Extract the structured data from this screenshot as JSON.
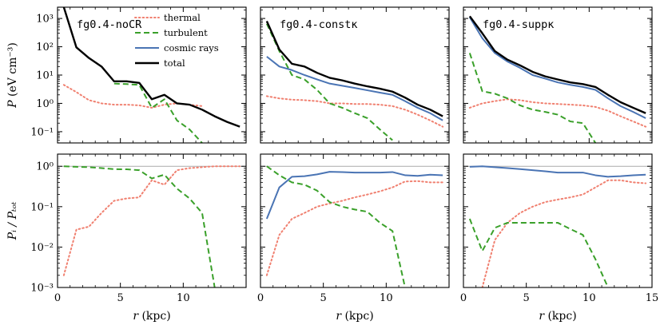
{
  "chart_data": {
    "type": "line",
    "colors": {
      "thermal": "#f08070",
      "turbulent": "#3aa02a",
      "cosmic_rays": "#4a74b4",
      "total": "#000000",
      "ref_line": "#aaaaaa"
    },
    "legend": [
      {
        "key": "thermal",
        "label": "thermal"
      },
      {
        "key": "turbulent",
        "label": "turbulent"
      },
      {
        "key": "cosmic_rays",
        "label": "cosmic rays"
      },
      {
        "key": "total",
        "label": "total"
      }
    ],
    "xlabel_var": "r",
    "xlabel_unit": " (kpc)",
    "top_ylabel_var": "P",
    "top_ylabel_unit": " (eV cm⁻³)",
    "bottom_ylabel": "Pᵢ / Pₜₒₜ",
    "xlim": [
      0,
      15
    ],
    "x_ticks": [
      0,
      5,
      10,
      15
    ],
    "x_tick_labels": [
      "0",
      "5",
      "10",
      "15"
    ],
    "top_ylim": [
      0.04,
      2500
    ],
    "top_y_ticks": [
      0.1,
      1,
      10,
      100,
      1000
    ],
    "top_y_tick_labels": [
      "10⁻¹",
      "10⁰",
      "10¹",
      "10²",
      "10³"
    ],
    "bottom_ylim": [
      0.001,
      2
    ],
    "bottom_y_ticks": [
      0.001,
      0.01,
      0.1,
      1
    ],
    "bottom_y_tick_labels": [
      "10⁻³",
      "10⁻²",
      "10⁻¹",
      "10⁰"
    ],
    "panels": [
      {
        "title": "fg0.4-noCR",
        "top": {
          "thermal": {
            "x": [
              0.5,
              1.5,
              2.5,
              3.5,
              4.5,
              5.5,
              6.5,
              7.5,
              8.5,
              9.5,
              10.5,
              11.5
            ],
            "y": [
              4.5,
              2.5,
              1.3,
              1.0,
              0.9,
              0.9,
              0.85,
              0.7,
              0.9,
              1.0,
              0.9,
              0.8
            ]
          },
          "turbulent": {
            "x": [
              4.5,
              5.5,
              6.5,
              7.5,
              8.5,
              9.5,
              10.5,
              11.5
            ],
            "y": [
              5.0,
              4.8,
              4.5,
              0.7,
              1.4,
              0.25,
              0.12,
              0.04
            ]
          },
          "total": {
            "x": [
              0.5,
              1.5,
              2.5,
              3.5,
              4.5,
              5.5,
              6.5,
              7.5,
              8.5,
              9.5,
              10.5,
              11.5,
              12.5,
              13.5,
              14.5
            ],
            "y": [
              2500,
              95,
              40,
              20,
              6.0,
              6.0,
              5.3,
              1.4,
              2.0,
              1.0,
              0.9,
              0.6,
              0.35,
              0.22,
              0.15
            ]
          }
        },
        "bottom": {
          "thermal": {
            "x": [
              0.5,
              1.5,
              2.5,
              3.5,
              4.5,
              5.5,
              6.5,
              7.5,
              8.5,
              9.5,
              10.5,
              11.5,
              12.5,
              13.5,
              14.5
            ],
            "y": [
              0.002,
              0.027,
              0.032,
              0.07,
              0.14,
              0.16,
              0.17,
              0.45,
              0.35,
              0.8,
              0.9,
              0.95,
              1.0,
              1.0,
              1.0
            ]
          },
          "turbulent": {
            "x": [
              0.5,
              1.5,
              2.5,
              3.5,
              4.5,
              5.5,
              6.5,
              7.5,
              8.5,
              9.5,
              10.5,
              11.5,
              12.5
            ],
            "y": [
              1.0,
              0.97,
              0.95,
              0.9,
              0.85,
              0.84,
              0.8,
              0.5,
              0.62,
              0.28,
              0.16,
              0.07,
              0.001
            ]
          }
        }
      },
      {
        "title": "fg0.4-constκ",
        "top": {
          "thermal": {
            "x": [
              0.5,
              1.5,
              2.5,
              3.5,
              4.5,
              5.5,
              6.5,
              7.5,
              8.5,
              9.5,
              10.5,
              11.5,
              12.5,
              13.5,
              14.5
            ],
            "y": [
              1.8,
              1.5,
              1.35,
              1.3,
              1.2,
              1.0,
              1.0,
              0.95,
              0.95,
              0.9,
              0.8,
              0.6,
              0.4,
              0.25,
              0.15
            ]
          },
          "turbulent": {
            "x": [
              0.5,
              1.5,
              2.5,
              3.5,
              4.5,
              5.5,
              6.5,
              7.5,
              8.5,
              9.5,
              10.5
            ],
            "y": [
              650,
              70,
              10,
              7,
              3,
              1.0,
              0.7,
              0.45,
              0.3,
              0.12,
              0.05
            ]
          },
          "cosmic_rays": {
            "x": [
              0.5,
              1.5,
              2.5,
              3.5,
              4.5,
              5.5,
              6.5,
              7.5,
              8.5,
              9.5,
              10.5,
              11.5,
              12.5,
              13.5,
              14.5
            ],
            "y": [
              45,
              20,
              15,
              10,
              7,
              5,
              4.2,
              3.5,
              2.9,
              2.4,
              2.0,
              1.2,
              0.7,
              0.45,
              0.25
            ]
          },
          "total": {
            "x": [
              0.5,
              1.5,
              2.5,
              3.5,
              4.5,
              5.5,
              6.5,
              7.5,
              8.5,
              9.5,
              10.5,
              11.5,
              12.5,
              13.5,
              14.5
            ],
            "y": [
              800,
              80,
              25,
              20,
              12,
              8,
              6.5,
              5,
              4,
              3.3,
              2.6,
              1.6,
              0.9,
              0.6,
              0.35
            ]
          }
        },
        "bottom": {
          "thermal": {
            "x": [
              0.5,
              1.5,
              2.5,
              3.5,
              4.5,
              5.5,
              6.5,
              7.5,
              8.5,
              9.5,
              10.5,
              11.5,
              12.5,
              13.5,
              14.5
            ],
            "y": [
              0.002,
              0.02,
              0.05,
              0.07,
              0.1,
              0.12,
              0.14,
              0.17,
              0.2,
              0.24,
              0.3,
              0.42,
              0.43,
              0.4,
              0.4
            ]
          },
          "turbulent": {
            "x": [
              0.5,
              1.5,
              2.5,
              3.5,
              4.5,
              5.5,
              6.5,
              7.5,
              8.5,
              9.5,
              10.5,
              11.5
            ],
            "y": [
              1.0,
              0.6,
              0.4,
              0.35,
              0.25,
              0.13,
              0.1,
              0.085,
              0.075,
              0.04,
              0.025,
              0.001
            ]
          },
          "cosmic_rays": {
            "x": [
              0.5,
              1.5,
              2.5,
              3.5,
              4.5,
              5.5,
              6.5,
              7.5,
              8.5,
              9.5,
              10.5,
              11.5,
              12.5,
              13.5,
              14.5
            ],
            "y": [
              0.05,
              0.3,
              0.55,
              0.57,
              0.63,
              0.73,
              0.72,
              0.7,
              0.7,
              0.7,
              0.72,
              0.6,
              0.58,
              0.62,
              0.6
            ]
          }
        }
      },
      {
        "title": "fg0.4-suppκ",
        "top": {
          "thermal": {
            "x": [
              0.5,
              1.5,
              2.5,
              3.5,
              4.5,
              5.5,
              6.5,
              7.5,
              8.5,
              9.5,
              10.5,
              11.5,
              12.5,
              13.5,
              14.5
            ],
            "y": [
              0.7,
              1.0,
              1.2,
              1.4,
              1.3,
              1.1,
              1.0,
              0.95,
              0.9,
              0.85,
              0.75,
              0.55,
              0.35,
              0.23,
              0.15
            ]
          },
          "turbulent": {
            "x": [
              0.5,
              1.5,
              2.5,
              3.5,
              4.5,
              5.5,
              6.5,
              7.5,
              8.5,
              9.5,
              10.5
            ],
            "y": [
              60,
              2.7,
              2.2,
              1.5,
              0.85,
              0.6,
              0.5,
              0.4,
              0.23,
              0.2,
              0.04
            ]
          },
          "cosmic_rays": {
            "x": [
              0.5,
              1.5,
              2.5,
              3.5,
              4.5,
              5.5,
              6.5,
              7.5,
              8.5,
              9.5,
              10.5,
              11.5,
              12.5,
              13.5,
              14.5
            ],
            "y": [
              1100,
              200,
              60,
              30,
              18,
              10,
              7.5,
              5.5,
              4.5,
              3.8,
              3.0,
              1.5,
              0.8,
              0.5,
              0.3
            ]
          },
          "total": {
            "x": [
              0.5,
              1.5,
              2.5,
              3.5,
              4.5,
              5.5,
              6.5,
              7.5,
              8.5,
              9.5,
              10.5,
              11.5,
              12.5,
              13.5,
              14.5
            ],
            "y": [
              1200,
              300,
              70,
              35,
              22,
              13,
              9,
              7,
              5.5,
              4.8,
              3.8,
              2.0,
              1.1,
              0.7,
              0.45
            ]
          }
        },
        "bottom": {
          "thermal": {
            "x": [
              1.5,
              2.5,
              3.5,
              4.5,
              5.5,
              6.5,
              7.5,
              8.5,
              9.5,
              10.5,
              11.5,
              12.5,
              13.5,
              14.5
            ],
            "y": [
              0.001,
              0.015,
              0.04,
              0.07,
              0.1,
              0.13,
              0.15,
              0.17,
              0.2,
              0.3,
              0.45,
              0.45,
              0.4,
              0.38
            ]
          },
          "turbulent": {
            "x": [
              0.5,
              1.5,
              2.5,
              3.5,
              4.5,
              5.5,
              6.5,
              7.5,
              8.5,
              9.5,
              10.5,
              11.5
            ],
            "y": [
              0.05,
              0.008,
              0.03,
              0.04,
              0.04,
              0.04,
              0.04,
              0.04,
              0.028,
              0.02,
              0.005,
              0.001
            ]
          },
          "cosmic_rays": {
            "x": [
              0.5,
              1.5,
              2.5,
              3.5,
              4.5,
              5.5,
              6.5,
              7.5,
              8.5,
              9.5,
              10.5,
              11.5,
              12.5,
              13.5,
              14.5
            ],
            "y": [
              0.97,
              1.0,
              0.95,
              0.9,
              0.85,
              0.8,
              0.75,
              0.7,
              0.7,
              0.7,
              0.6,
              0.55,
              0.57,
              0.6,
              0.62
            ]
          }
        }
      }
    ]
  }
}
